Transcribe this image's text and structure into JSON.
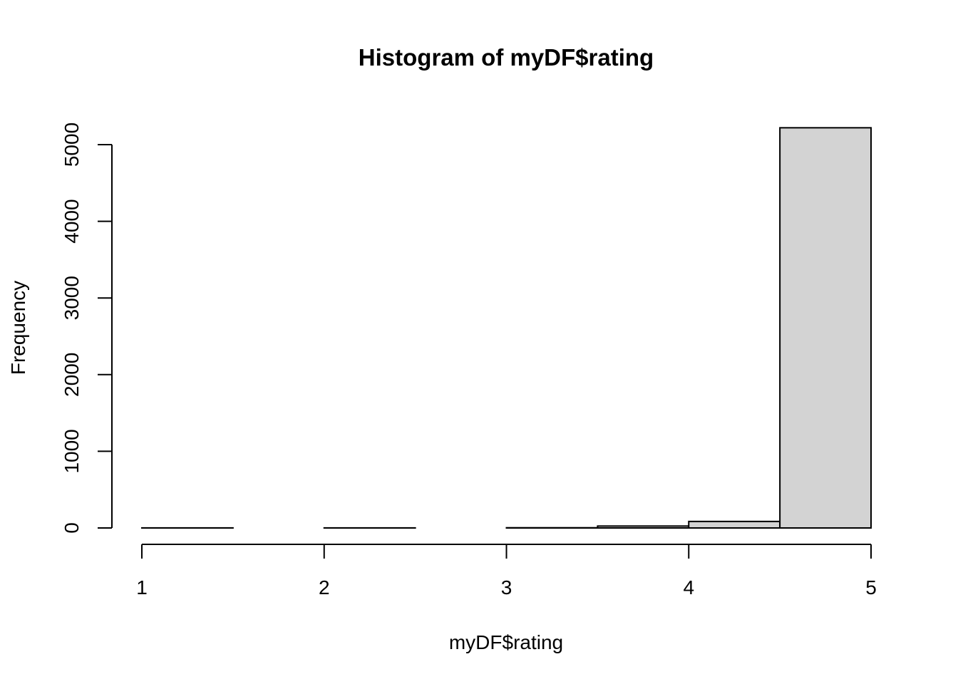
{
  "chart_data": {
    "type": "bar",
    "title": "Histogram of myDF$rating",
    "xlabel": "myDF$rating",
    "ylabel": "Frequency",
    "bins": [
      {
        "x0": 1.0,
        "x1": 1.5,
        "value": 1
      },
      {
        "x0": 1.5,
        "x1": 2.0,
        "value": 0
      },
      {
        "x0": 2.0,
        "x1": 2.5,
        "value": 1
      },
      {
        "x0": 2.5,
        "x1": 3.0,
        "value": 0
      },
      {
        "x0": 3.0,
        "x1": 3.5,
        "value": 3
      },
      {
        "x0": 3.5,
        "x1": 4.0,
        "value": 25
      },
      {
        "x0": 4.0,
        "x1": 4.5,
        "value": 85
      },
      {
        "x0": 4.5,
        "x1": 5.0,
        "value": 5220
      }
    ],
    "xlim": [
      1,
      5
    ],
    "ylim": [
      0,
      5000
    ],
    "x_ticks": [
      "1",
      "2",
      "3",
      "4",
      "5"
    ],
    "y_ticks": [
      "0",
      "1000",
      "2000",
      "3000",
      "4000",
      "5000"
    ],
    "grid": false,
    "bar_color": "#d3d3d3"
  }
}
